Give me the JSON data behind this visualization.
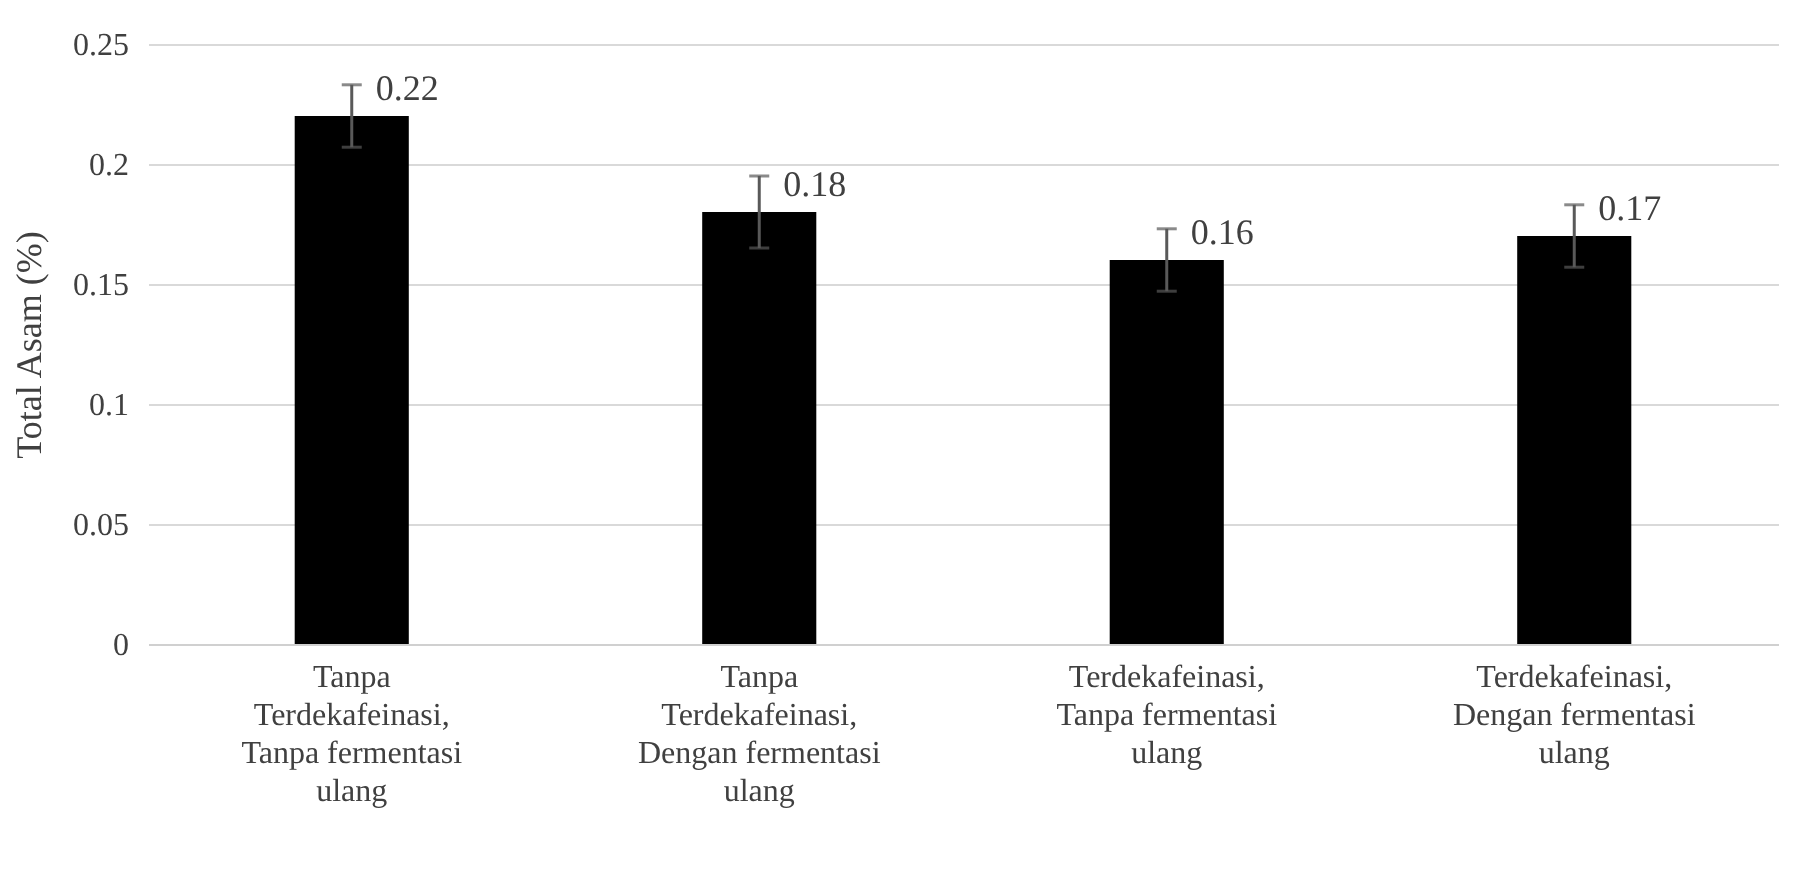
{
  "chart_data": {
    "type": "bar",
    "ylabel": "Total Asam (%)",
    "categories": [
      "Tanpa Terdekafeinasi, Tanpa fermentasi ulang",
      "Tanpa Terdekafeinasi, Dengan fermentasi ulang",
      "Terdekafeinasi, Tanpa fermentasi ulang",
      "Terdekafeinasi, Dengan fermentasi ulang"
    ],
    "values": [
      0.22,
      0.18,
      0.16,
      0.17
    ],
    "errors": [
      0.013,
      0.015,
      0.013,
      0.013
    ],
    "color": "#000000",
    "ylim": [
      0,
      0.25
    ],
    "yticks": [
      0,
      0.05,
      0.1,
      0.15,
      0.2,
      0.25
    ],
    "grid": "y",
    "data_labels": true
  }
}
